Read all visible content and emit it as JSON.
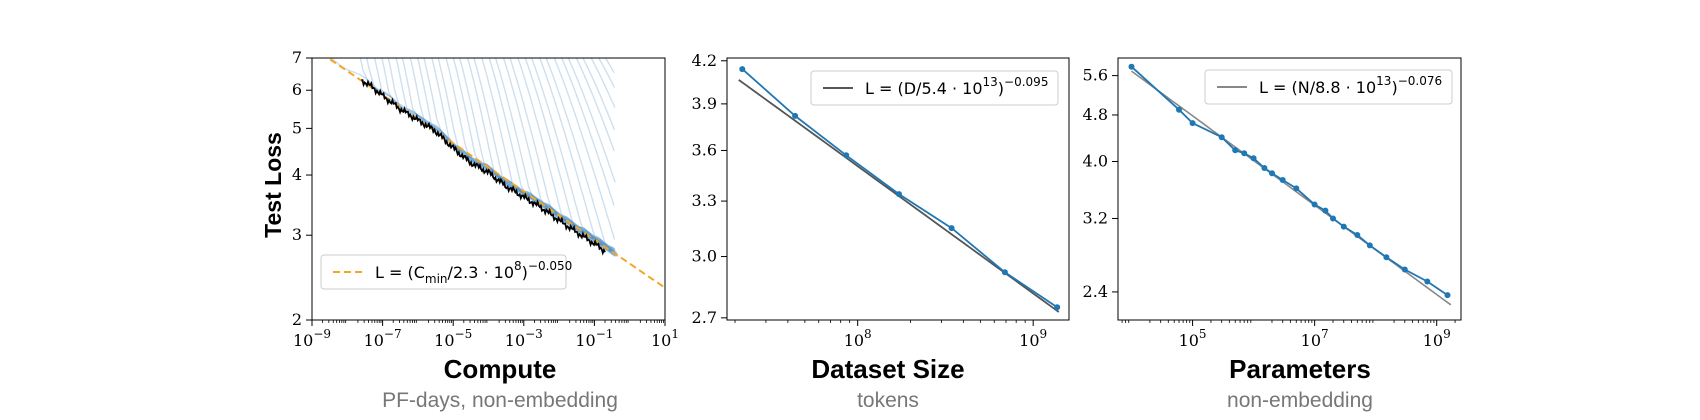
{
  "chart_data": [
    {
      "type": "line",
      "panel": "compute",
      "xlabel": "Compute",
      "xsublabel": "PF-days, non-embedding",
      "ylabel": "Test Loss",
      "xscale": "log",
      "yscale": "log",
      "xlim": [
        1e-09,
        10
      ],
      "ylim": [
        2,
        7
      ],
      "xticks": [
        {
          "value": 1e-09,
          "base": "10",
          "exp": "−9"
        },
        {
          "value": 1e-07,
          "base": "10",
          "exp": "−7"
        },
        {
          "value": 1e-05,
          "base": "10",
          "exp": "−5"
        },
        {
          "value": 0.001,
          "base": "10",
          "exp": "−3"
        },
        {
          "value": 0.1,
          "base": "10",
          "exp": "−1"
        },
        {
          "value": 10,
          "base": "10",
          "exp": "1"
        }
      ],
      "yticks": [
        {
          "value": 2,
          "label": "2"
        },
        {
          "value": 3,
          "label": "3"
        },
        {
          "value": 4,
          "label": "4"
        },
        {
          "value": 5,
          "label": "5"
        },
        {
          "value": 6,
          "label": "6"
        },
        {
          "value": 7,
          "label": "7"
        }
      ],
      "legend": {
        "position": "lower-left",
        "prefix": "L = (C",
        "sub": "min",
        "mid": "/2.3 · 10",
        "sup1": "8",
        "close": ")",
        "sup2": "−0.050"
      },
      "fit": {
        "C0": 230000000.0,
        "alpha": 0.05,
        "x": [
          1e-09,
          10
        ],
        "color": "#f5a623",
        "style": "dashed"
      },
      "frontier": {
        "color": "#000000",
        "x": [
          2.5e-08,
          5e-08,
          1e-07,
          3e-07,
          1e-06,
          3e-06,
          1e-05,
          3e-05,
          0.0001,
          0.0003,
          0.001,
          0.003,
          0.01,
          0.03,
          0.1,
          0.2
        ],
        "y": [
          6.3,
          6.1,
          5.85,
          5.5,
          5.2,
          4.95,
          4.55,
          4.25,
          4.05,
          3.8,
          3.6,
          3.43,
          3.22,
          3.05,
          2.88,
          2.78
        ]
      },
      "runs": {
        "color": "#4a90c8",
        "count": 36,
        "start_x": [
          1e-09,
          2e-08,
          3e-08,
          5e-08,
          8e-08,
          1.2e-07,
          2e-07,
          3e-07,
          5e-07,
          8e-07,
          1.2e-06,
          2e-06,
          3e-06,
          5e-06,
          8e-06,
          1.2e-05,
          2e-05,
          3e-05,
          5e-05,
          8e-05,
          0.00012,
          0.0002,
          0.0003,
          0.0005,
          0.0008,
          0.0012,
          0.002,
          0.003,
          0.005,
          0.008,
          0.012,
          0.02,
          0.03,
          0.05,
          0.08,
          0.12
        ]
      }
    },
    {
      "type": "line",
      "panel": "dataset",
      "xlabel": "Dataset Size",
      "xsublabel": "tokens",
      "xscale": "log",
      "yscale": "log",
      "xlim": [
        18000000.0,
        1600000000.0
      ],
      "ylim": [
        2.69,
        4.22
      ],
      "xticks": [
        {
          "value": 100000000.0,
          "base": "10",
          "exp": "8"
        },
        {
          "value": 1000000000.0,
          "base": "10",
          "exp": "9"
        }
      ],
      "yticks": [
        {
          "value": 2.7,
          "label": "2.7"
        },
        {
          "value": 3.0,
          "label": "3.0"
        },
        {
          "value": 3.3,
          "label": "3.3"
        },
        {
          "value": 3.6,
          "label": "3.6"
        },
        {
          "value": 3.9,
          "label": "3.9"
        },
        {
          "value": 4.2,
          "label": "4.2"
        }
      ],
      "legend": {
        "position": "upper-right",
        "prefix": "L = (D/5.4 · 10",
        "sup1": "13",
        "close": ")",
        "sup2": "−0.095"
      },
      "fit": {
        "C0": 54000000000000.0,
        "alpha": 0.095,
        "x": [
          21000000.0,
          1400000000.0
        ],
        "color": "#555555"
      },
      "series": {
        "color": "#1f77b4",
        "x": [
          22000000.0,
          44000000.0,
          86000000.0,
          172000000.0,
          343000000.0,
          690000000.0,
          1370000000.0
        ],
        "y": [
          4.14,
          3.82,
          3.57,
          3.34,
          3.15,
          2.92,
          2.75
        ]
      }
    },
    {
      "type": "line",
      "panel": "parameters",
      "xlabel": "Parameters",
      "xsublabel": "non-embedding",
      "xscale": "log",
      "yscale": "log",
      "xlim": [
        6000.0,
        2500000000.0
      ],
      "ylim": [
        2.15,
        6.0
      ],
      "xticks": [
        {
          "value": 100000.0,
          "base": "10",
          "exp": "5"
        },
        {
          "value": 10000000.0,
          "base": "10",
          "exp": "7"
        },
        {
          "value": 1000000000.0,
          "base": "10",
          "exp": "9"
        }
      ],
      "yticks": [
        {
          "value": 2.4,
          "label": "2.4"
        },
        {
          "value": 3.2,
          "label": "3.2"
        },
        {
          "value": 4.0,
          "label": "4.0"
        },
        {
          "value": 4.8,
          "label": "4.8"
        },
        {
          "value": 5.6,
          "label": "5.6"
        }
      ],
      "legend": {
        "position": "upper-right",
        "prefix": "L = (N/8.8 · 10",
        "sup1": "13",
        "close": ")",
        "sup2": "−0.076"
      },
      "fit": {
        "C0": 88000000000000.0,
        "alpha": 0.076,
        "x": [
          10000.0,
          1700000000.0
        ],
        "color": "#888888"
      },
      "series": {
        "color": "#1f77b4",
        "x": [
          10000.0,
          60000.0,
          100000.0,
          300000.0,
          500000.0,
          700000.0,
          1000000.0,
          1500000.0,
          2000000.0,
          3000000.0,
          5000000.0,
          10000000.0,
          15000000.0,
          20000000.0,
          30000000.0,
          50000000.0,
          80000000.0,
          150000000.0,
          300000000.0,
          700000000.0,
          1500000000.0
        ],
        "y": [
          5.8,
          4.9,
          4.65,
          4.4,
          4.18,
          4.13,
          4.05,
          3.9,
          3.82,
          3.72,
          3.6,
          3.38,
          3.3,
          3.2,
          3.1,
          3.0,
          2.88,
          2.75,
          2.62,
          2.5,
          2.37
        ]
      }
    }
  ]
}
